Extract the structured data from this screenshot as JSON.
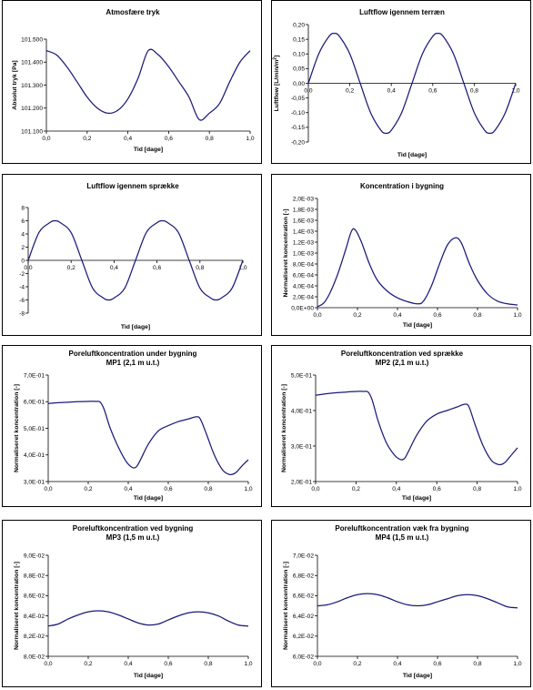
{
  "chart_data": [
    {
      "type": "line",
      "title": "Atmosfære tryk",
      "subtitle": "",
      "xlabel": "Tid [dage]",
      "ylabel": "Absolut tryk [Pa]",
      "xlim": [
        0,
        1
      ],
      "ylim": [
        101100,
        101500
      ],
      "xticks": [
        "0,0",
        "0,2",
        "0,4",
        "0,6",
        "0,8",
        "1,0"
      ],
      "yticks": [
        "101.500",
        "101.400",
        "101.300",
        "101.200",
        "101.100"
      ],
      "x": [
        0,
        0.05,
        0.1,
        0.15,
        0.2,
        0.25,
        0.3,
        0.35,
        0.4,
        0.45,
        0.5,
        0.55,
        0.6,
        0.65,
        0.7,
        0.75,
        0.8,
        0.85,
        0.9,
        0.95,
        1.0
      ],
      "series": [
        {
          "values": [
            101450,
            101431,
            101380,
            101315,
            101248,
            101200,
            101178,
            101190,
            101240,
            101330,
            101450,
            101431,
            101380,
            101315,
            101248,
            101150,
            101178,
            101220,
            101315,
            101400,
            101450
          ]
        }
      ]
    },
    {
      "type": "line",
      "title": "Luftflow igennem terræn",
      "subtitle": "",
      "xlabel": "Tid [dage]",
      "ylabel": "Luftflow [L/min/m²]",
      "xlim": [
        0,
        1
      ],
      "ylim": [
        -0.2,
        0.2
      ],
      "xticks": [
        "0,0",
        "0,2",
        "0,4",
        "0,6",
        "0,8",
        "1,0"
      ],
      "yticks": [
        "0,20",
        "0,15",
        "0,10",
        "0,05",
        "0,00",
        "-0,05",
        "-0,10",
        "-0,15",
        "-0,20"
      ],
      "x": [
        0,
        0.05,
        0.1,
        0.125,
        0.15,
        0.2,
        0.25,
        0.3,
        0.35,
        0.375,
        0.4,
        0.45,
        0.5,
        0.55,
        0.6,
        0.625,
        0.65,
        0.7,
        0.75,
        0.8,
        0.85,
        0.875,
        0.9,
        0.95,
        1.0
      ],
      "series": [
        {
          "values": [
            0,
            0.1,
            0.16,
            0.17,
            0.16,
            0.1,
            0,
            -0.1,
            -0.16,
            -0.17,
            -0.16,
            -0.1,
            0,
            0.1,
            0.16,
            0.17,
            0.16,
            0.1,
            0,
            -0.1,
            -0.16,
            -0.17,
            -0.16,
            -0.1,
            0
          ]
        }
      ]
    },
    {
      "type": "line",
      "title": "Luftflow igennem sprække",
      "subtitle": "",
      "xlabel": "Tid [dage]",
      "ylabel": "Luftflow [L/min]",
      "xlim": [
        0,
        1
      ],
      "ylim": [
        -8,
        8
      ],
      "xticks": [
        "0,0",
        "0,2",
        "0,4",
        "0,6",
        "0,8",
        "1,0"
      ],
      "yticks": [
        "8",
        "6",
        "4",
        "2",
        "0",
        "-2",
        "-4",
        "-6",
        "-8"
      ],
      "x": [
        0,
        0.05,
        0.1,
        0.125,
        0.15,
        0.2,
        0.25,
        0.3,
        0.35,
        0.375,
        0.4,
        0.45,
        0.5,
        0.55,
        0.6,
        0.625,
        0.65,
        0.7,
        0.75,
        0.8,
        0.85,
        0.875,
        0.9,
        0.95,
        1.0
      ],
      "series": [
        {
          "values": [
            0,
            4.2,
            5.7,
            6,
            5.7,
            4.2,
            0,
            -4.2,
            -5.7,
            -6,
            -5.7,
            -4.2,
            0,
            4.2,
            5.7,
            6,
            5.7,
            4.2,
            0,
            -4.2,
            -5.7,
            -6,
            -5.7,
            -4.2,
            0
          ]
        }
      ]
    },
    {
      "type": "line",
      "title": "Koncentration i bygning",
      "subtitle": "",
      "xlabel": "Tid [dage]",
      "ylabel": "Normaliseret koncentration [-]",
      "xlim": [
        0,
        1
      ],
      "ylim": [
        0,
        0.002
      ],
      "xticks": [
        "0,0",
        "0,2",
        "0,4",
        "0,6",
        "0,8",
        "1,0"
      ],
      "yticks": [
        "2,0E-03",
        "1,8E-03",
        "1,6E-03",
        "1,4E-03",
        "1,2E-03",
        "1,0E-03",
        "8,0E-04",
        "6,0E-04",
        "4,0E-04",
        "2,0E-04",
        "0,0E+00"
      ],
      "x": [
        0,
        0.03,
        0.06,
        0.1,
        0.14,
        0.17,
        0.19,
        0.22,
        0.26,
        0.3,
        0.35,
        0.4,
        0.45,
        0.5,
        0.53,
        0.57,
        0.61,
        0.65,
        0.69,
        0.72,
        0.76,
        0.8,
        0.85,
        0.9,
        0.95,
        1.0
      ],
      "series": [
        {
          "values": [
            2e-05,
            8e-05,
            0.00025,
            0.0006,
            0.00105,
            0.0014,
            0.00142,
            0.0012,
            0.0008,
            0.0005,
            0.0003,
            0.00018,
            0.00011,
            7e-05,
            0.00012,
            0.0004,
            0.0008,
            0.00115,
            0.00128,
            0.00118,
            0.0008,
            0.0005,
            0.00025,
            0.00012,
            7e-05,
            5e-05
          ]
        }
      ]
    },
    {
      "type": "line",
      "title": "Poreluftkoncentration under bygning",
      "subtitle": "MP1 (2,1 m u.t.)",
      "xlabel": "Tid [dage]",
      "ylabel": "Normaliseret koncentration [-]",
      "xlim": [
        0,
        1
      ],
      "ylim": [
        0.3,
        0.7
      ],
      "xticks": [
        "0,0",
        "0,2",
        "0,4",
        "0,6",
        "0,8",
        "1,0"
      ],
      "yticks": [
        "7,0E-01",
        "6,0E-01",
        "5,0E-01",
        "4,0E-01",
        "3,0E-01"
      ],
      "x": [
        0,
        0.05,
        0.1,
        0.15,
        0.2,
        0.24,
        0.26,
        0.28,
        0.31,
        0.35,
        0.39,
        0.42,
        0.44,
        0.46,
        0.5,
        0.55,
        0.6,
        0.65,
        0.7,
        0.74,
        0.76,
        0.79,
        0.83,
        0.87,
        0.9,
        0.92,
        0.94,
        0.97,
        1.0
      ],
      "series": [
        {
          "values": [
            0.593,
            0.596,
            0.598,
            0.6,
            0.601,
            0.601,
            0.598,
            0.57,
            0.5,
            0.43,
            0.375,
            0.353,
            0.355,
            0.38,
            0.44,
            0.49,
            0.51,
            0.525,
            0.535,
            0.543,
            0.535,
            0.48,
            0.4,
            0.345,
            0.328,
            0.327,
            0.335,
            0.36,
            0.382
          ]
        }
      ]
    },
    {
      "type": "line",
      "title": "Poreluftkoncentration ved sprække",
      "subtitle": "MP2 (2,1 m u.t.)",
      "xlabel": "Tid [dage]",
      "ylabel": "Normaliseret koncentration [-]",
      "xlim": [
        0,
        1
      ],
      "ylim": [
        0.2,
        0.5
      ],
      "xticks": [
        "0,0",
        "0,2",
        "0,4",
        "0,6",
        "0,8",
        "1,0"
      ],
      "yticks": [
        "5,0E-01",
        "4,0E-01",
        "3,0E-01",
        "2,0E-01"
      ],
      "x": [
        0,
        0.05,
        0.1,
        0.15,
        0.2,
        0.24,
        0.26,
        0.28,
        0.31,
        0.35,
        0.39,
        0.42,
        0.44,
        0.46,
        0.5,
        0.55,
        0.6,
        0.65,
        0.7,
        0.74,
        0.76,
        0.79,
        0.83,
        0.87,
        0.9,
        0.92,
        0.94,
        0.97,
        1.0
      ],
      "series": [
        {
          "values": [
            0.443,
            0.447,
            0.45,
            0.452,
            0.454,
            0.454,
            0.452,
            0.43,
            0.37,
            0.31,
            0.275,
            0.262,
            0.265,
            0.285,
            0.33,
            0.37,
            0.39,
            0.4,
            0.41,
            0.418,
            0.41,
            0.36,
            0.3,
            0.26,
            0.249,
            0.248,
            0.255,
            0.275,
            0.295
          ]
        }
      ]
    },
    {
      "type": "line",
      "title": "Poreluftkoncentration ved bygning",
      "subtitle": "MP3 (1,5 m u.t.)",
      "xlabel": "Tid [dage]",
      "ylabel": "Normaliseret koncentration [-]",
      "xlim": [
        0,
        1
      ],
      "ylim": [
        0.08,
        0.09
      ],
      "xticks": [
        "0,0",
        "0,2",
        "0,4",
        "0,6",
        "0,8",
        "1,0"
      ],
      "yticks": [
        "9,0E-02",
        "8,8E-02",
        "8,6E-02",
        "8,4E-02",
        "8,2E-02",
        "8,0E-02"
      ],
      "x": [
        0,
        0.05,
        0.1,
        0.15,
        0.2,
        0.25,
        0.3,
        0.35,
        0.4,
        0.45,
        0.5,
        0.55,
        0.6,
        0.65,
        0.7,
        0.75,
        0.8,
        0.85,
        0.9,
        0.95,
        1.0
      ],
      "series": [
        {
          "values": [
            0.083,
            0.0832,
            0.0837,
            0.0841,
            0.0844,
            0.0845,
            0.0844,
            0.0841,
            0.0837,
            0.0833,
            0.0831,
            0.0832,
            0.0836,
            0.084,
            0.0843,
            0.0844,
            0.0843,
            0.084,
            0.0835,
            0.0831,
            0.083
          ]
        }
      ]
    },
    {
      "type": "line",
      "title": "Poreluftkoncentration væk fra bygning",
      "subtitle": "MP4 (1,5 m u.t.)",
      "xlabel": "Tid [dage]",
      "ylabel": "Normaliseret koncentration [-]",
      "xlim": [
        0,
        1
      ],
      "ylim": [
        0.06,
        0.07
      ],
      "xticks": [
        "0,0",
        "0,2",
        "0,4",
        "0,6",
        "0,8",
        "1,0"
      ],
      "yticks": [
        "7,0E-02",
        "6,8E-02",
        "6,6E-02",
        "6,4E-02",
        "6,2E-02",
        "6,0E-02"
      ],
      "x": [
        0,
        0.05,
        0.1,
        0.15,
        0.2,
        0.25,
        0.3,
        0.35,
        0.4,
        0.45,
        0.5,
        0.55,
        0.6,
        0.65,
        0.7,
        0.75,
        0.8,
        0.85,
        0.9,
        0.95,
        1.0
      ],
      "series": [
        {
          "values": [
            0.065,
            0.0651,
            0.0654,
            0.0658,
            0.0661,
            0.0662,
            0.0661,
            0.0658,
            0.0654,
            0.0651,
            0.065,
            0.0651,
            0.0654,
            0.0657,
            0.066,
            0.0661,
            0.066,
            0.0657,
            0.0653,
            0.0649,
            0.0648
          ]
        }
      ]
    }
  ]
}
